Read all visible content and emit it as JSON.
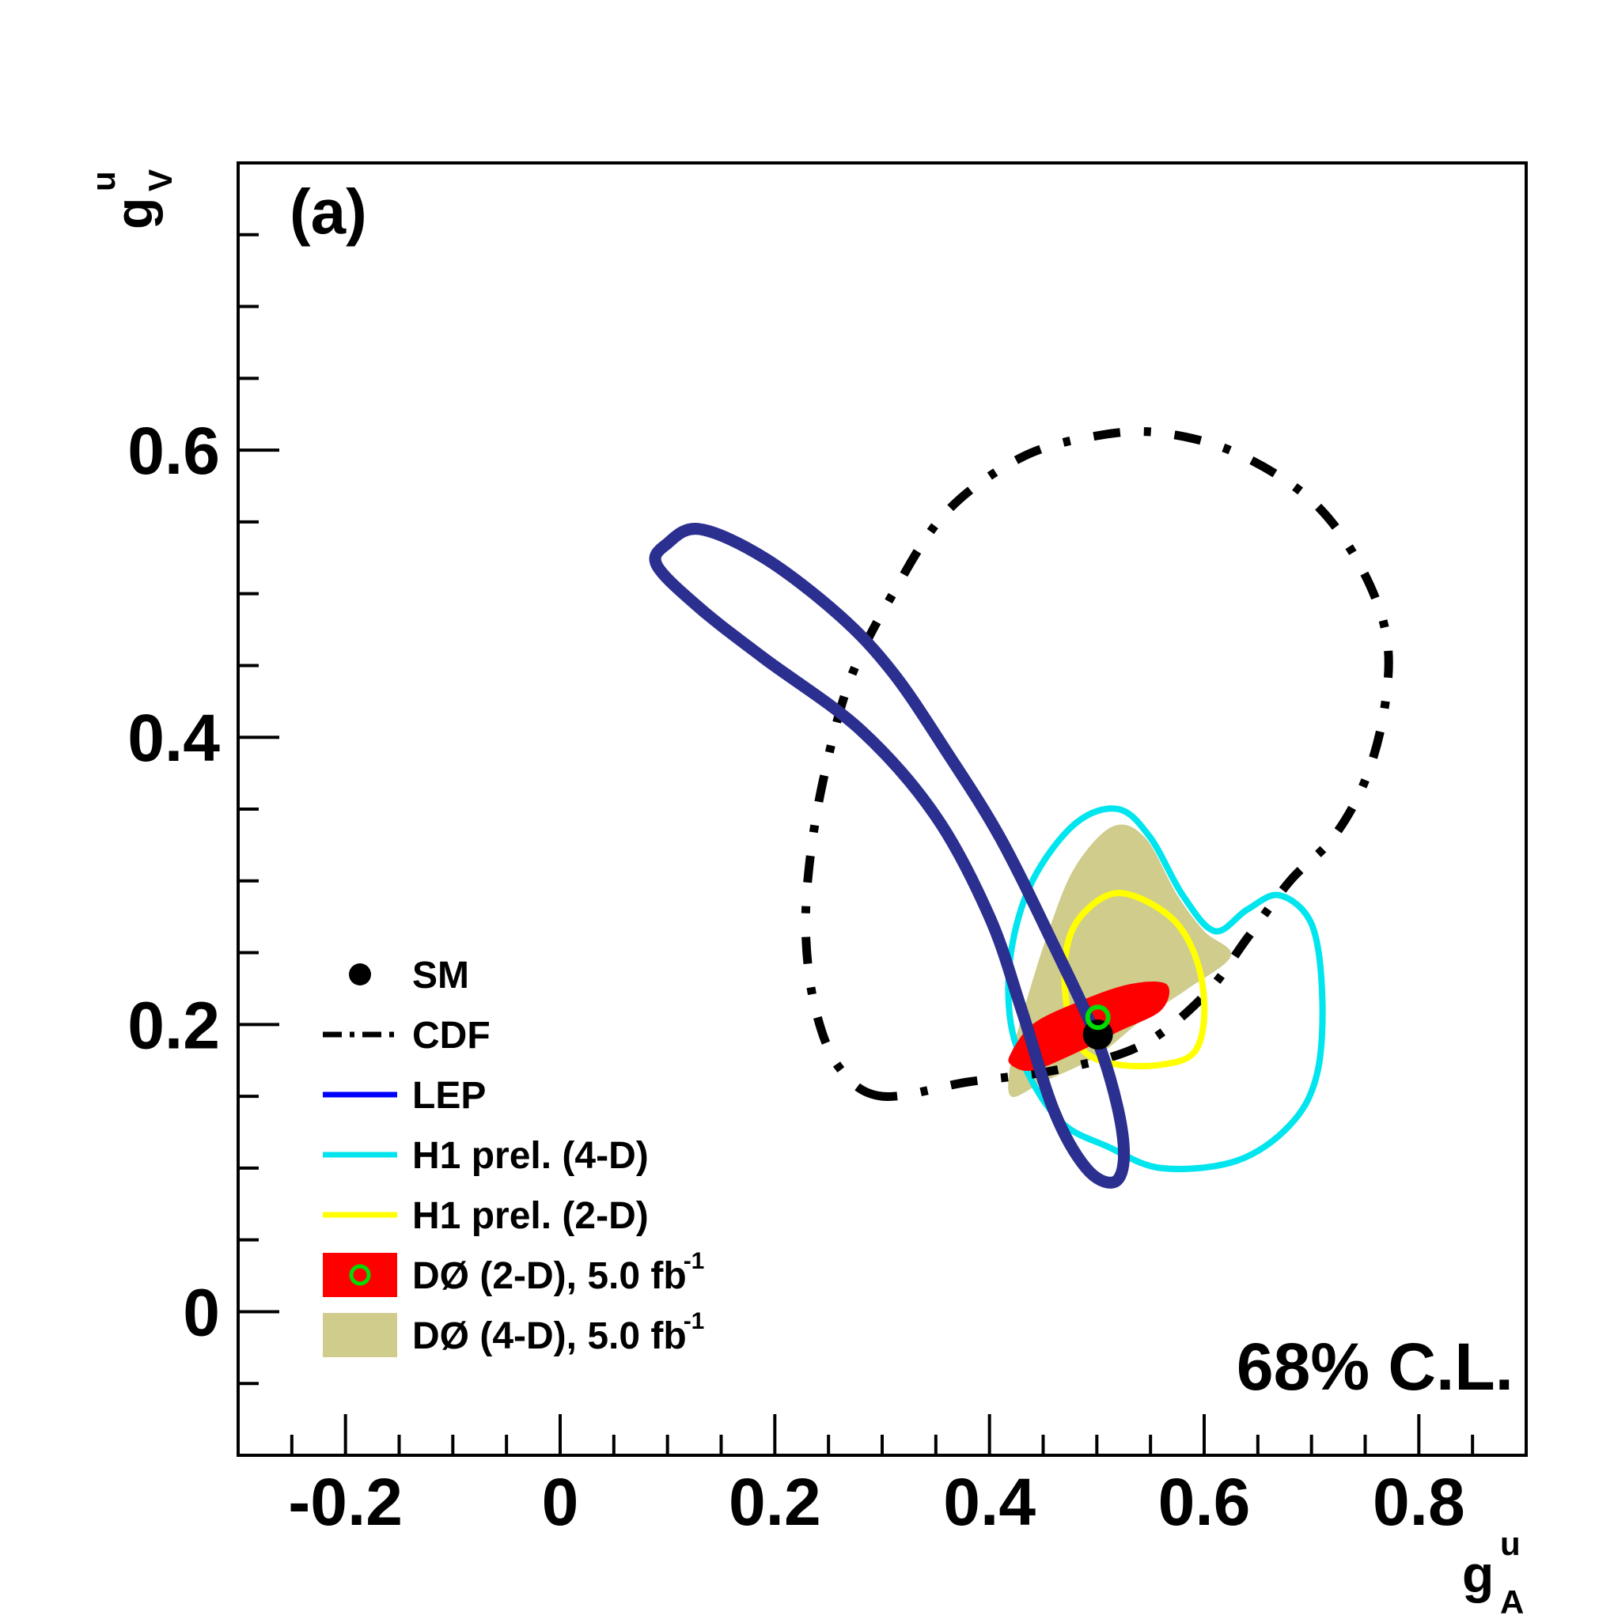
{
  "chart_data": {
    "type": "contour",
    "panel_label": "(a)",
    "confidence_label": "68% C.L.",
    "xaxis": {
      "label_main": "g",
      "label_sup": "u",
      "label_sub": "A",
      "range": [
        -0.3,
        0.9
      ],
      "major_ticks": [
        -0.2,
        0,
        0.2,
        0.4,
        0.6,
        0.8
      ],
      "tick_labels": [
        "-0.2",
        "0",
        "0.2",
        "0.4",
        "0.6",
        "0.8"
      ],
      "minor_step": 0.05
    },
    "yaxis": {
      "label_main": "g",
      "label_sup": "u",
      "label_sub": "V",
      "range": [
        -0.1,
        0.8
      ],
      "major_ticks": [
        0,
        0.2,
        0.4,
        0.6
      ],
      "tick_labels": [
        "0",
        "0.2",
        "0.4",
        "0.6"
      ],
      "minor_step": 0.05
    },
    "series": [
      {
        "name": "CDF",
        "style": "dashdot",
        "color": "#000000",
        "points": [
          [
            0.3,
            0.15
          ],
          [
            0.26,
            0.17
          ],
          [
            0.238,
            0.21
          ],
          [
            0.229,
            0.26
          ],
          [
            0.232,
            0.31
          ],
          [
            0.245,
            0.37
          ],
          [
            0.27,
            0.44
          ],
          [
            0.31,
            0.5
          ],
          [
            0.36,
            0.557
          ],
          [
            0.43,
            0.595
          ],
          [
            0.5,
            0.61
          ],
          [
            0.56,
            0.612
          ],
          [
            0.63,
            0.598
          ],
          [
            0.7,
            0.565
          ],
          [
            0.745,
            0.52
          ],
          [
            0.77,
            0.47
          ],
          [
            0.768,
            0.42
          ],
          [
            0.75,
            0.37
          ],
          [
            0.72,
            0.33
          ],
          [
            0.68,
            0.3
          ],
          [
            0.64,
            0.26
          ],
          [
            0.6,
            0.22
          ],
          [
            0.54,
            0.185
          ],
          [
            0.46,
            0.168
          ],
          [
            0.38,
            0.16
          ],
          [
            0.3,
            0.15
          ]
        ]
      },
      {
        "name": "LEP",
        "style": "solid",
        "color": "#2b2f8f",
        "legend_color": "#0000ff",
        "points": [
          [
            0.13,
            0.545
          ],
          [
            0.19,
            0.525
          ],
          [
            0.26,
            0.485
          ],
          [
            0.31,
            0.445
          ],
          [
            0.36,
            0.39
          ],
          [
            0.41,
            0.33
          ],
          [
            0.46,
            0.255
          ],
          [
            0.5,
            0.19
          ],
          [
            0.52,
            0.14
          ],
          [
            0.525,
            0.105
          ],
          [
            0.515,
            0.09
          ],
          [
            0.49,
            0.1
          ],
          [
            0.46,
            0.14
          ],
          [
            0.43,
            0.21
          ],
          [
            0.4,
            0.275
          ],
          [
            0.35,
            0.345
          ],
          [
            0.28,
            0.405
          ],
          [
            0.19,
            0.455
          ],
          [
            0.13,
            0.49
          ],
          [
            0.09,
            0.52
          ],
          [
            0.1,
            0.535
          ],
          [
            0.13,
            0.545
          ]
        ]
      },
      {
        "name": "H1 prel. (4-D)",
        "style": "solid",
        "color": "#00e5ee",
        "points": [
          [
            0.42,
            0.25
          ],
          [
            0.44,
            0.3
          ],
          [
            0.48,
            0.34
          ],
          [
            0.52,
            0.35
          ],
          [
            0.55,
            0.33
          ],
          [
            0.58,
            0.29
          ],
          [
            0.61,
            0.265
          ],
          [
            0.64,
            0.28
          ],
          [
            0.67,
            0.29
          ],
          [
            0.7,
            0.27
          ],
          [
            0.71,
            0.22
          ],
          [
            0.705,
            0.165
          ],
          [
            0.68,
            0.13
          ],
          [
            0.63,
            0.105
          ],
          [
            0.56,
            0.1
          ],
          [
            0.51,
            0.115
          ],
          [
            0.47,
            0.13
          ],
          [
            0.44,
            0.16
          ],
          [
            0.42,
            0.2
          ],
          [
            0.42,
            0.25
          ]
        ]
      },
      {
        "name": "H1 prel. (2-D)",
        "style": "solid",
        "color": "#ffff00",
        "points": [
          [
            0.47,
            0.24
          ],
          [
            0.48,
            0.27
          ],
          [
            0.51,
            0.29
          ],
          [
            0.54,
            0.288
          ],
          [
            0.575,
            0.27
          ],
          [
            0.595,
            0.24
          ],
          [
            0.6,
            0.205
          ],
          [
            0.59,
            0.18
          ],
          [
            0.56,
            0.172
          ],
          [
            0.52,
            0.172
          ],
          [
            0.49,
            0.18
          ],
          [
            0.475,
            0.2
          ],
          [
            0.47,
            0.24
          ]
        ]
      },
      {
        "name": "DØ (4-D), 5.0 fb",
        "name_sup": "-1",
        "style": "filled",
        "color": "#cfcc8c",
        "points": [
          [
            0.455,
            0.265
          ],
          [
            0.48,
            0.31
          ],
          [
            0.515,
            0.338
          ],
          [
            0.545,
            0.33
          ],
          [
            0.575,
            0.29
          ],
          [
            0.6,
            0.265
          ],
          [
            0.625,
            0.248
          ],
          [
            0.585,
            0.225
          ],
          [
            0.545,
            0.205
          ],
          [
            0.5,
            0.178
          ],
          [
            0.45,
            0.16
          ],
          [
            0.42,
            0.15
          ],
          [
            0.42,
            0.175
          ],
          [
            0.43,
            0.205
          ],
          [
            0.455,
            0.265
          ]
        ]
      },
      {
        "name": "DØ (2-D), 5.0 fb",
        "name_sup": "-1",
        "style": "filled",
        "color": "#ff0000",
        "points": [
          [
            0.42,
            0.18
          ],
          [
            0.44,
            0.2
          ],
          [
            0.48,
            0.215
          ],
          [
            0.53,
            0.228
          ],
          [
            0.565,
            0.228
          ],
          [
            0.56,
            0.21
          ],
          [
            0.52,
            0.195
          ],
          [
            0.48,
            0.18
          ],
          [
            0.44,
            0.168
          ],
          [
            0.42,
            0.172
          ],
          [
            0.42,
            0.18
          ]
        ],
        "best_fit": [
          0.501,
          0.205
        ],
        "best_fit_color": "#00dd00"
      }
    ],
    "sm_point": {
      "name": "SM",
      "x": 0.501,
      "y": 0.193
    },
    "legend": {
      "position": "lower-left",
      "entries": [
        {
          "label": "SM",
          "sup": ""
        },
        {
          "label": "CDF",
          "sup": ""
        },
        {
          "label": "LEP",
          "sup": ""
        },
        {
          "label": "H1 prel. (4-D)",
          "sup": ""
        },
        {
          "label": "H1 prel. (2-D)",
          "sup": ""
        },
        {
          "label": "DØ (2-D), 5.0 fb",
          "sup": "-1"
        },
        {
          "label": "DØ (4-D), 5.0 fb",
          "sup": "-1"
        }
      ]
    }
  }
}
